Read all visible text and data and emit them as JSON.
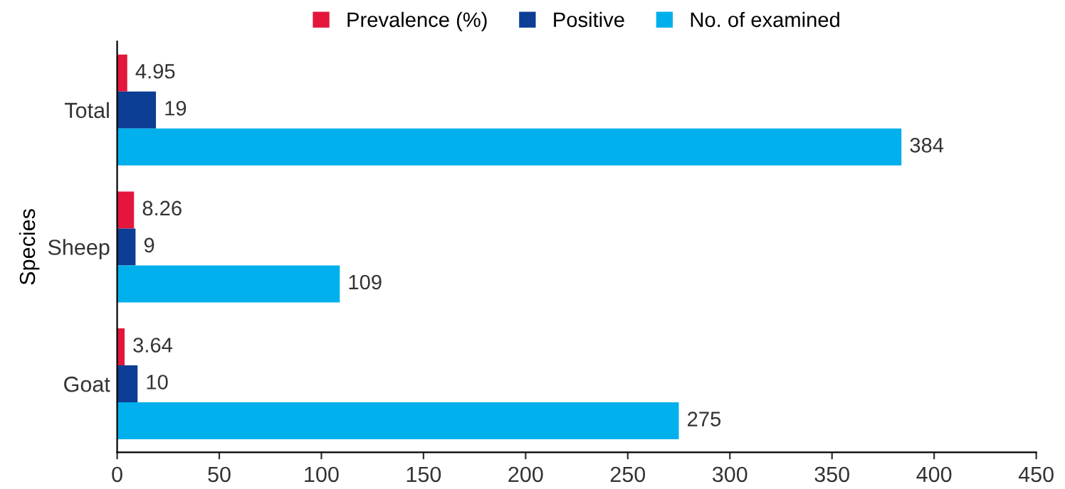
{
  "chart_data": {
    "type": "bar",
    "orientation": "horizontal",
    "ylabel": "Species",
    "categories": [
      "Total",
      "Sheep",
      "Goat"
    ],
    "series": [
      {
        "name": "Prevalence (%)",
        "color": "#e4163c",
        "values": [
          4.95,
          8.26,
          3.64
        ]
      },
      {
        "name": "Positive",
        "color": "#0d3d94",
        "values": [
          19,
          9,
          10
        ]
      },
      {
        "name": "No. of examined",
        "color": "#00b0ec",
        "values": [
          384,
          109,
          275
        ]
      }
    ],
    "xlim": [
      0,
      450
    ],
    "xticks": [
      0,
      50,
      100,
      150,
      200,
      250,
      300,
      350,
      400,
      450
    ],
    "grid": false,
    "legend": "top",
    "data_labels": true
  }
}
